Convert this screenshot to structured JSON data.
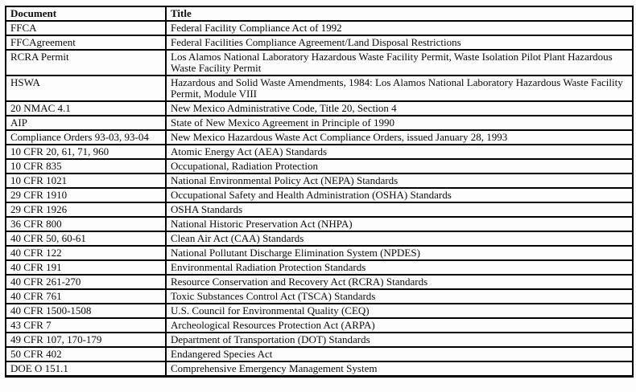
{
  "colors": {
    "border": "#000000",
    "text": "#0b0b0b",
    "background": "#fdfdfd"
  },
  "table": {
    "headers": [
      "Document",
      "Title"
    ],
    "rows": [
      {
        "document": "FFCA",
        "title": "Federal Facility Compliance Act of 1992"
      },
      {
        "document": "FFCAgreement",
        "title": "Federal Facilities Compliance Agreement/Land Disposal Restrictions"
      },
      {
        "document": "RCRA Permit",
        "title": "Los Alamos National Laboratory Hazardous Waste Facility Permit, Waste Isolation Pilot Plant Hazardous Waste Facility Permit"
      },
      {
        "document": "HSWA",
        "title": "Hazardous and Solid Waste Amendments, 1984: Los Alamos National Laboratory Hazardous Waste Facility Permit, Module VIII"
      },
      {
        "document": "20 NMAC 4.1",
        "title": "New Mexico Administrative Code, Title 20, Section 4"
      },
      {
        "document": "AIP",
        "title": "State of New Mexico Agreement in Principle of 1990"
      },
      {
        "document": "Compliance Orders 93-03, 93-04",
        "title": "New Mexico Hazardous Waste Act Compliance Orders, issued January 28, 1993"
      },
      {
        "document": "10 CFR 20, 61, 71, 960",
        "title": "Atomic Energy Act (AEA) Standards"
      },
      {
        "document": "10 CFR 835",
        "title": "Occupational, Radiation Protection"
      },
      {
        "document": "10 CFR 1021",
        "title": "National Environmental Policy Act (NEPA) Standards"
      },
      {
        "document": "29 CFR 1910",
        "title": "Occupational Safety and Health Administration (OSHA) Standards"
      },
      {
        "document": "29 CFR 1926",
        "title": "OSHA Standards"
      },
      {
        "document": "36 CFR 800",
        "title": "National Historic Preservation Act (NHPA)"
      },
      {
        "document": "40 CFR 50, 60-61",
        "title": "Clean Air Act (CAA) Standards"
      },
      {
        "document": "40 CFR 122",
        "title": "National Pollutant Discharge Elimination System (NPDES)"
      },
      {
        "document": "40 CFR 191",
        "title": "Environmental Radiation Protection Standards"
      },
      {
        "document": "40 CFR 261-270",
        "title": "Resource Conservation and Recovery Act (RCRA) Standards"
      },
      {
        "document": "40 CFR 761",
        "title": "Toxic Substances Control Act (TSCA) Standards"
      },
      {
        "document": "40 CFR 1500-1508",
        "title": "U.S. Council for Environmental Quality (CEQ)"
      },
      {
        "document": "43 CFR 7",
        "title": "Archeological Resources Protection Act (ARPA)"
      },
      {
        "document": "49 CFR 107, 170-179",
        "title": "Department of Transportation (DOT) Standards"
      },
      {
        "document": "50 CFR 402",
        "title": "Endangered Species Act"
      },
      {
        "document": "DOE O 151.1",
        "title": "Comprehensive Emergency Management System"
      }
    ]
  }
}
